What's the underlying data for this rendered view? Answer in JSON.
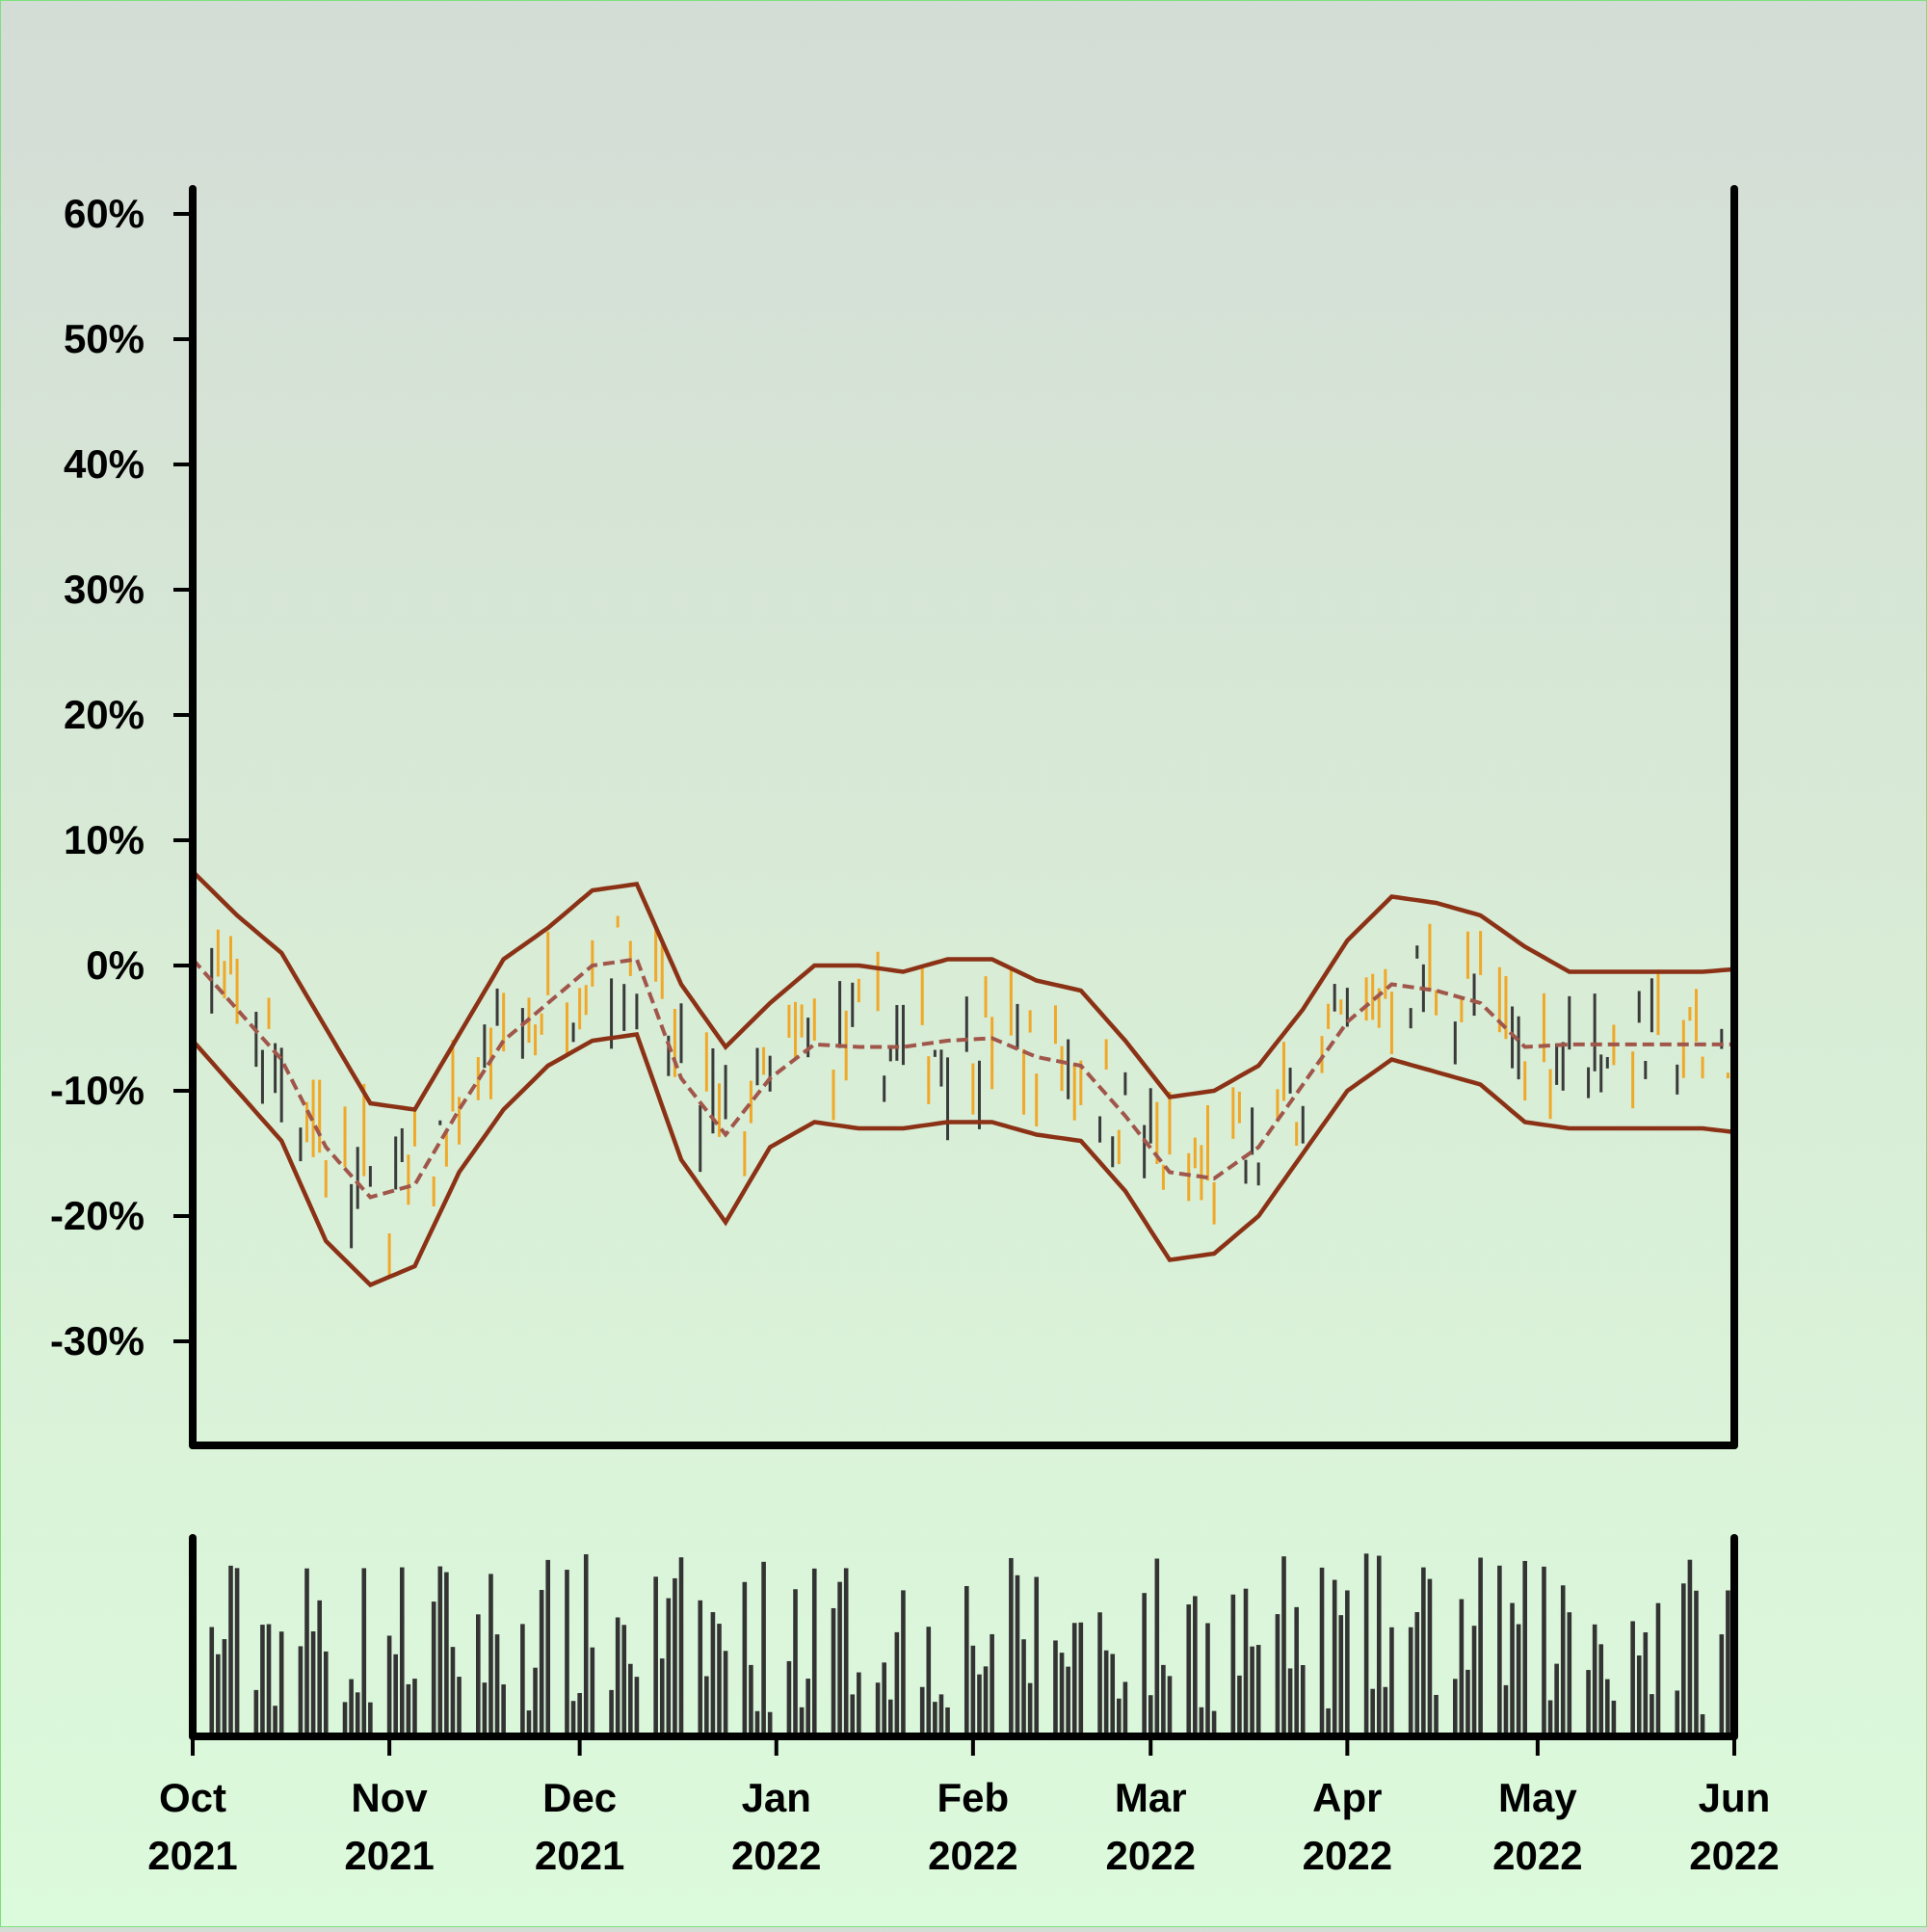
{
  "chart_data": {
    "type": "ohlc",
    "title": "",
    "xlabel": "",
    "ylabel": "",
    "y_axis": {
      "ylim": [
        -37,
        62
      ],
      "ticks": [
        60,
        50,
        40,
        30,
        20,
        10,
        0,
        -10,
        -20,
        -30
      ],
      "tick_labels": [
        "60%",
        "50%",
        "40%",
        "30%",
        "20%",
        "10%",
        "0%",
        "-10%",
        "-20%",
        "-30%"
      ]
    },
    "x_axis": {
      "start": "2021-10-01",
      "end": "2022-06-01",
      "ticks": [
        {
          "date": "2021-10-01",
          "month": "Oct",
          "year": "2021"
        },
        {
          "date": "2021-11-01",
          "month": "Nov",
          "year": "2021"
        },
        {
          "date": "2021-12-01",
          "month": "Dec",
          "year": "2021"
        },
        {
          "date": "2022-01-01",
          "month": "Jan",
          "year": "2022"
        },
        {
          "date": "2022-02-01",
          "month": "Feb",
          "year": "2022"
        },
        {
          "date": "2022-03-01",
          "month": "Mar",
          "year": "2022"
        },
        {
          "date": "2022-04-01",
          "month": "Apr",
          "year": "2022"
        },
        {
          "date": "2022-05-01",
          "month": "May",
          "year": "2022"
        },
        {
          "date": "2022-06-01",
          "month": "Jun",
          "year": "2022"
        }
      ]
    },
    "bands": {
      "dates": [
        "2021-10-01",
        "2021-10-08",
        "2021-10-15",
        "2021-10-22",
        "2021-10-29",
        "2021-11-05",
        "2021-11-12",
        "2021-11-19",
        "2021-11-26",
        "2021-12-03",
        "2021-12-10",
        "2021-12-17",
        "2021-12-24",
        "2021-12-31",
        "2022-01-07",
        "2022-01-14",
        "2022-01-21",
        "2022-01-28",
        "2022-02-04",
        "2022-02-11",
        "2022-02-18",
        "2022-02-25",
        "2022-03-04",
        "2022-03-11",
        "2022-03-18",
        "2022-03-25",
        "2022-04-01",
        "2022-04-08",
        "2022-04-15",
        "2022-04-22",
        "2022-04-29",
        "2022-05-06",
        "2022-05-13",
        "2022-05-20",
        "2022-05-27",
        "2022-06-01"
      ],
      "upper": [
        7.5,
        4,
        1,
        -5,
        -11,
        -11.5,
        -5.5,
        0.5,
        3,
        6,
        6.5,
        -1.5,
        -6.5,
        -3,
        0,
        0,
        -0.5,
        0.5,
        0.5,
        -1.2,
        -2,
        -6,
        -10.5,
        -10,
        -8,
        -3.5,
        2,
        5.5,
        5,
        4,
        1.5,
        -0.5,
        -0.5,
        -0.5,
        -0.5,
        -0.3
      ],
      "middle": [
        0.5,
        -3.5,
        -7.5,
        -14.5,
        -18.5,
        -17.5,
        -11.5,
        -6,
        -3,
        0,
        0.5,
        -9,
        -13.5,
        -9,
        -6.3,
        -6.5,
        -6.5,
        -6,
        -5.8,
        -7.3,
        -8,
        -12,
        -16.5,
        -17,
        -14.5,
        -9.5,
        -4.5,
        -1.5,
        -2,
        -3,
        -6.5,
        -6.3,
        -6.3,
        -6.3,
        -6.3,
        -6.3
      ],
      "lower": [
        -6,
        -10,
        -14,
        -22,
        -25.5,
        -24,
        -16.5,
        -11.5,
        -8,
        -6,
        -5.5,
        -15.5,
        -20.5,
        -14.5,
        -12.5,
        -13,
        -13,
        -12.5,
        -12.5,
        -13.5,
        -14,
        -18,
        -23.5,
        -23,
        -20,
        -15,
        -10,
        -7.5,
        -8.5,
        -9.5,
        -12.5,
        -13,
        -13,
        -13,
        -13,
        -13.3
      ],
      "upper_color": "#8b3216",
      "lower_color": "#8b3216",
      "middle_color": "#a0564a"
    },
    "bar_colors": {
      "up": "#3a3a3a",
      "down": "#f0a828"
    },
    "volume": {
      "color": "#333333"
    }
  }
}
